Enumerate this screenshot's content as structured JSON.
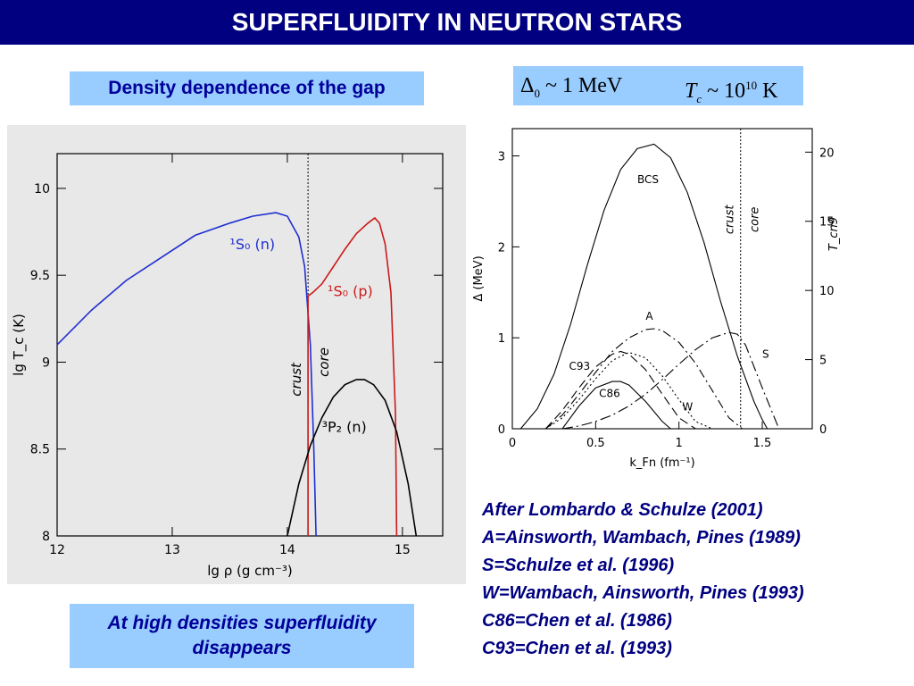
{
  "title": "SUPERFLUIDITY IN NEUTRON STARS",
  "gap_label": "Density dependence of the gap",
  "formula": {
    "delta_sym": "Δ",
    "delta_sub": "0",
    "delta_rest": " ~ 1 MeV",
    "tc_sym": "T",
    "tc_sub": "c",
    "tc_rest": " ~ 10",
    "tc_exp": "10",
    "tc_unit": " K"
  },
  "bottom_note": "At high densities superfluidity disappears",
  "references": [
    "After Lombardo & Schulze (2001)",
    "A=Ainsworth, Wambach, Pines (1989)",
    "S=Schulze et al. (1996)",
    "W=Wambach, Ainsworth, Pines (1993)",
    "C86=Chen et al. (1986)",
    "C93=Chen et al. (1993)"
  ],
  "colors": {
    "title_bg": "#000080",
    "box_bg": "#99ccff",
    "text_blue": "#000099",
    "neutron_1S0": "#1f2fd0",
    "proton_1S0": "#cc1a1a",
    "neutron_3P2": "#000000"
  },
  "chart_data": [
    {
      "type": "line",
      "xlabel": "lg ρ (g cm⁻³)",
      "ylabel": "lg T_c (K)",
      "xlim": [
        12,
        15.35
      ],
      "ylim": [
        8,
        10.2
      ],
      "xticks": [
        "12",
        "13",
        "14",
        "15"
      ],
      "yticks": [
        "8",
        "8.5",
        "9",
        "9.5",
        "10"
      ],
      "crust_core_boundary": 14.18,
      "annotations": [
        "crust",
        "core"
      ],
      "series": [
        {
          "name": "¹S₀ (n)",
          "color": "#1f2fd0",
          "x": [
            12.0,
            12.3,
            12.6,
            12.9,
            13.2,
            13.5,
            13.7,
            13.9,
            14.0,
            14.1,
            14.15,
            14.2,
            14.23,
            14.25
          ],
          "y": [
            9.1,
            9.3,
            9.47,
            9.6,
            9.73,
            9.8,
            9.84,
            9.86,
            9.84,
            9.72,
            9.55,
            9.1,
            8.5,
            8.0
          ]
        },
        {
          "name": "¹S₀ (p)",
          "color": "#cc1a1a",
          "x": [
            14.18,
            14.18,
            14.22,
            14.3,
            14.4,
            14.5,
            14.6,
            14.7,
            14.76,
            14.8,
            14.85,
            14.9,
            14.94,
            14.95
          ],
          "y": [
            8.0,
            9.38,
            9.4,
            9.45,
            9.55,
            9.65,
            9.74,
            9.8,
            9.83,
            9.8,
            9.68,
            9.4,
            8.7,
            8.0
          ]
        },
        {
          "name": "³P₂ (n)",
          "color": "#000000",
          "x": [
            14.0,
            14.1,
            14.2,
            14.3,
            14.4,
            14.5,
            14.6,
            14.67,
            14.75,
            14.85,
            14.95,
            15.05,
            15.12
          ],
          "y": [
            8.0,
            8.3,
            8.52,
            8.68,
            8.8,
            8.87,
            8.9,
            8.9,
            8.87,
            8.78,
            8.6,
            8.3,
            8.0
          ]
        }
      ]
    },
    {
      "type": "line",
      "xlabel": "k_Fn (fm⁻¹)",
      "ylabel": "Δ (MeV)",
      "ylabel_right": "T_cn9",
      "xlim": [
        0,
        1.8
      ],
      "ylim": [
        0,
        3.3
      ],
      "xticks": [
        "0",
        "0.5",
        "1",
        "1.5"
      ],
      "yticks": [
        "0",
        "1",
        "2",
        "3"
      ],
      "yticks_right": [
        "0",
        "5",
        "10",
        "15",
        "20"
      ],
      "crust_core_boundary": 1.37,
      "annotations": [
        "crust",
        "core"
      ],
      "series": [
        {
          "name": "BCS",
          "dash": "solid",
          "x": [
            0.05,
            0.15,
            0.25,
            0.35,
            0.45,
            0.55,
            0.65,
            0.75,
            0.85,
            0.95,
            1.05,
            1.15,
            1.25,
            1.35,
            1.45,
            1.5,
            1.53
          ],
          "y": [
            0.0,
            0.22,
            0.6,
            1.15,
            1.8,
            2.4,
            2.85,
            3.08,
            3.13,
            2.98,
            2.6,
            2.05,
            1.4,
            0.8,
            0.3,
            0.1,
            0.0
          ]
        },
        {
          "name": "A",
          "dash": "10 4 2 4",
          "x": [
            0.2,
            0.3,
            0.4,
            0.5,
            0.6,
            0.7,
            0.8,
            0.85,
            0.9,
            1.0,
            1.1,
            1.2,
            1.3,
            1.38
          ],
          "y": [
            0.0,
            0.15,
            0.38,
            0.62,
            0.85,
            1.0,
            1.09,
            1.1,
            1.08,
            0.95,
            0.72,
            0.42,
            0.12,
            0.0
          ]
        },
        {
          "name": "C93",
          "dash": "10 5",
          "x": [
            0.2,
            0.3,
            0.4,
            0.5,
            0.6,
            0.65,
            0.7,
            0.8,
            0.9,
            1.0,
            1.1,
            1.12
          ],
          "y": [
            0.0,
            0.2,
            0.45,
            0.68,
            0.82,
            0.85,
            0.82,
            0.65,
            0.38,
            0.12,
            0.0,
            0.0
          ]
        },
        {
          "name": "W",
          "dash": "2 3",
          "x": [
            0.2,
            0.3,
            0.4,
            0.5,
            0.6,
            0.7,
            0.8,
            0.9,
            1.0,
            1.1,
            1.2
          ],
          "y": [
            0.0,
            0.12,
            0.32,
            0.55,
            0.75,
            0.84,
            0.78,
            0.58,
            0.32,
            0.08,
            0.0
          ]
        },
        {
          "name": "C86",
          "dash": "solid",
          "x": [
            0.3,
            0.4,
            0.5,
            0.6,
            0.65,
            0.7,
            0.8,
            0.9,
            0.95
          ],
          "y": [
            0.0,
            0.25,
            0.45,
            0.52,
            0.52,
            0.48,
            0.3,
            0.08,
            0.0
          ]
        },
        {
          "name": "S",
          "dash": "12 4 2 4",
          "x": [
            0.3,
            0.4,
            0.5,
            0.6,
            0.7,
            0.8,
            0.9,
            1.0,
            1.1,
            1.2,
            1.3,
            1.35,
            1.4,
            1.5,
            1.6
          ],
          "y": [
            0.0,
            0.03,
            0.08,
            0.15,
            0.25,
            0.38,
            0.54,
            0.71,
            0.87,
            1.0,
            1.06,
            1.04,
            0.92,
            0.45,
            0.0
          ]
        }
      ]
    }
  ]
}
